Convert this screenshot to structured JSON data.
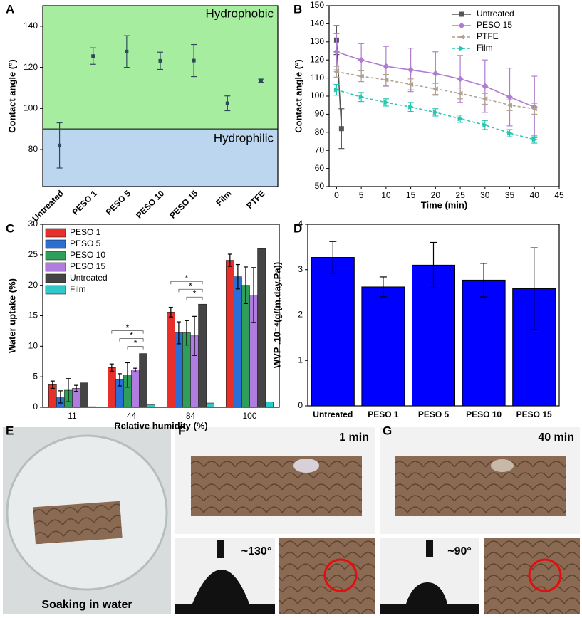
{
  "panel_labels": [
    "A",
    "B",
    "C",
    "D",
    "E",
    "F",
    "G"
  ],
  "photos": {
    "e_caption": "Soaking in water",
    "f_time": "1 min",
    "f_angle": "~130°",
    "g_time": "40 min",
    "g_angle": "~90°"
  },
  "chart_data": [
    {
      "type": "errorbar_points",
      "y_label": "Contact angle (°)",
      "categories": [
        "Untreated",
        "PESO 1",
        "PESO 5",
        "PESO 10",
        "PESO 15",
        "Film",
        "PTFE"
      ],
      "values": [
        82,
        125.5,
        127.7,
        123.2,
        123.3,
        102.5,
        113.5
      ],
      "errors": [
        11,
        4,
        7.7,
        4.2,
        7.8,
        3.6,
        0.8
      ],
      "color": "#2e4a5a",
      "threshold": 90,
      "upper_label": "Hydrophobic",
      "lower_label": "Hydrophilic",
      "upper_color": "#a6eda0",
      "lower_color": "#bcd6ef",
      "ylim": [
        62,
        150
      ],
      "yticks": [
        80,
        100,
        120,
        140
      ]
    },
    {
      "type": "line",
      "x_label": "Time (min)",
      "y_label": "Contact angle (°)",
      "xlim": [
        -1.5,
        45
      ],
      "xticks": [
        0,
        5,
        10,
        15,
        20,
        25,
        30,
        35,
        40,
        45
      ],
      "ylim": [
        50,
        150
      ],
      "yticks": [
        50,
        60,
        70,
        80,
        90,
        100,
        110,
        120,
        130,
        140,
        150
      ],
      "legend": "top-right",
      "series": [
        {
          "name": "Untreated",
          "color": "#555555",
          "marker": "square",
          "dashed": false,
          "x": [
            0,
            1
          ],
          "values": [
            131,
            82
          ],
          "errors": [
            8,
            11
          ]
        },
        {
          "name": "PESO 15",
          "color": "#b07cd0",
          "marker": "diamond",
          "dashed": false,
          "x": [
            0,
            5,
            10,
            15,
            20,
            25,
            30,
            35,
            40
          ],
          "values": [
            124.5,
            120,
            116.5,
            114.5,
            112.5,
            109.5,
            105.5,
            99.5,
            94
          ],
          "errors": [
            10,
            9,
            11,
            12,
            12,
            13,
            14.5,
            16,
            17
          ]
        },
        {
          "name": "PTFE",
          "color": "#b0a090",
          "marker": "triangle-left",
          "dashed": true,
          "x": [
            0,
            5,
            10,
            15,
            20,
            25,
            30,
            35,
            40
          ],
          "values": [
            113.5,
            111,
            109,
            106.5,
            104,
            101.5,
            98.5,
            95,
            93
          ],
          "errors": [
            3,
            3,
            3,
            3,
            3,
            3,
            3,
            3,
            3
          ]
        },
        {
          "name": "Film",
          "color": "#26c6b0",
          "marker": "triangle-right",
          "dashed": true,
          "x": [
            0,
            5,
            10,
            15,
            20,
            25,
            30,
            35,
            40
          ],
          "values": [
            103.5,
            99.5,
            96.5,
            94,
            91,
            87.5,
            84,
            79.5,
            76
          ],
          "errors": [
            3,
            2.5,
            2,
            2.5,
            2,
            2,
            2.5,
            2,
            2
          ]
        }
      ]
    },
    {
      "type": "grouped_bar",
      "x_label": "Relative humidity (%)",
      "y_label": "Water uptake (%)",
      "categories": [
        "11",
        "44",
        "84",
        "100"
      ],
      "ylim": [
        0,
        30
      ],
      "yticks": [
        0,
        5,
        10,
        15,
        20,
        25,
        30
      ],
      "legend": "top-left",
      "significance": [
        "*",
        "*",
        "*",
        "*",
        "*",
        "*"
      ],
      "series": [
        {
          "name": "PESO 1",
          "color": "#e8302a",
          "values": [
            3.7,
            6.5,
            15.6,
            24.1
          ],
          "errors": [
            0.6,
            0.6,
            0.8,
            1
          ]
        },
        {
          "name": "PESO 5",
          "color": "#2a6fd6",
          "values": [
            1.7,
            4.5,
            12.2,
            21.4
          ],
          "errors": [
            1,
            1,
            1.8,
            2
          ]
        },
        {
          "name": "PESO 10",
          "color": "#2e9e5a",
          "values": [
            2.8,
            5.3,
            12.2,
            20
          ],
          "errors": [
            1.9,
            2,
            2,
            3
          ]
        },
        {
          "name": "PESO 15",
          "color": "#b07ce0",
          "values": [
            3.1,
            6.1,
            11.7,
            18.4
          ],
          "errors": [
            0.5,
            0.3,
            3.2,
            4.5
          ]
        },
        {
          "name": "Untreated",
          "color": "#444444",
          "values": [
            4,
            8.8,
            16.9,
            26
          ]
        },
        {
          "name": "Film",
          "color": "#30c8c8",
          "values": [
            0.1,
            0.4,
            0.7,
            0.9
          ]
        }
      ]
    },
    {
      "type": "bar",
      "y_label": "WVP .10⁻⁴(g/(m.day.Pa))",
      "categories": [
        "Untreated",
        "PESO 1",
        "PESO 5",
        "PESO 10",
        "PESO 15"
      ],
      "values": [
        3.27,
        2.62,
        3.1,
        2.77,
        2.58
      ],
      "errors": [
        0.35,
        0.22,
        0.5,
        0.37,
        0.9
      ],
      "color": "#0000ff",
      "ylim": [
        0,
        4
      ],
      "yticks": [
        0,
        1,
        2,
        3,
        4
      ]
    }
  ]
}
